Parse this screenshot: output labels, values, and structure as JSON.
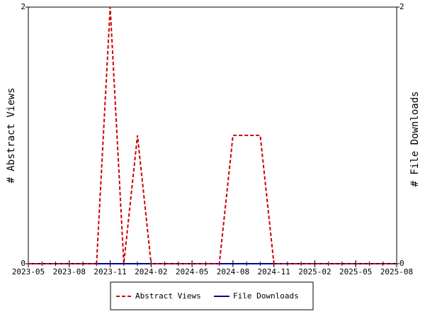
{
  "chart_data": {
    "type": "line",
    "y_label": "# Abstract Views",
    "y2_label": "# File Downloads",
    "x": [
      "2023-05",
      "2023-06",
      "2023-07",
      "2023-08",
      "2023-09",
      "2023-10",
      "2023-11",
      "2023-12",
      "2024-01",
      "2024-02",
      "2024-03",
      "2024-04",
      "2024-05",
      "2024-06",
      "2024-07",
      "2024-08",
      "2024-09",
      "2024-10",
      "2024-11",
      "2024-12",
      "2025-01",
      "2025-02",
      "2025-03",
      "2025-04",
      "2025-05",
      "2025-06",
      "2025-07",
      "2025-08"
    ],
    "series": [
      {
        "name": "Abstract Views",
        "color": "#cc0000",
        "dash": true,
        "values": [
          0,
          0,
          0,
          0,
          0,
          0,
          2,
          0,
          1,
          0,
          0,
          0,
          0,
          0,
          0,
          1,
          1,
          1,
          0,
          0,
          0,
          0,
          0,
          0,
          0,
          0,
          0,
          0
        ]
      },
      {
        "name": "File Downloads",
        "color": "#000099",
        "dash": false,
        "axis": "y2",
        "values": [
          0,
          0,
          0,
          0,
          0,
          0,
          0,
          0,
          0,
          0,
          0,
          0,
          0,
          0,
          0,
          0,
          0,
          0,
          0,
          0,
          0,
          0,
          0,
          0,
          0,
          0,
          0,
          0
        ]
      }
    ],
    "xlim": [
      "2023-05",
      "2025-08"
    ],
    "xticks": [
      "2023-05",
      "2023-08",
      "2023-11",
      "2024-02",
      "2024-05",
      "2024-08",
      "2024-11",
      "2025-02",
      "2025-05",
      "2025-08"
    ],
    "ylim": [
      0,
      2
    ],
    "yticks": [
      0,
      2
    ],
    "y2lim": [
      0,
      2
    ],
    "y2ticks": [
      0,
      2
    ],
    "legend": "bottom"
  }
}
